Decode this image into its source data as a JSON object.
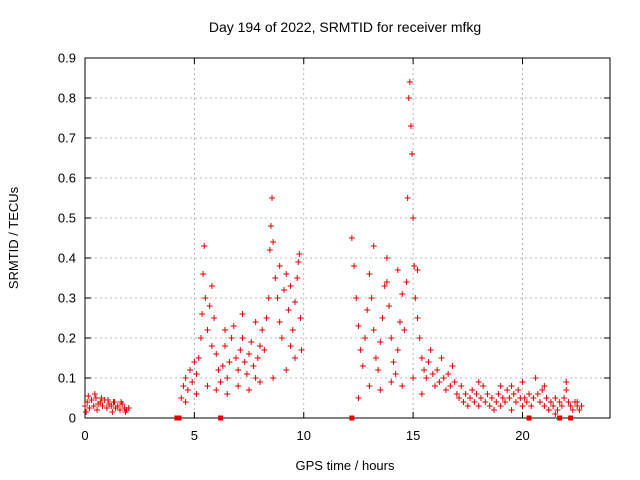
{
  "chart_data": {
    "type": "scatter",
    "title": "Day 194 of 2022, SRMTID for receiver mfkg",
    "xlabel": "GPS time / hours",
    "ylabel": "SRMTID / TECUs",
    "xlim": [
      0,
      24
    ],
    "ylim": [
      0,
      0.9
    ],
    "x_ticks": [
      0,
      5,
      10,
      15,
      20
    ],
    "y_ticks": [
      0,
      0.1,
      0.2,
      0.3,
      0.4,
      0.5,
      0.6,
      0.7,
      0.8,
      0.9
    ],
    "x_tick_labels": [
      "0",
      "5",
      "10",
      "15",
      "20"
    ],
    "y_tick_labels": [
      "0",
      "0.1",
      "0.2",
      "0.3",
      "0.4",
      "0.5",
      "0.6",
      "0.7",
      "0.8",
      "0.9"
    ],
    "grid": true,
    "marker": "+",
    "color": "#e00000",
    "series": [
      {
        "name": "SRMTID",
        "points": [
          [
            0.0,
            0.03
          ],
          [
            0.1,
            0.04
          ],
          [
            0.2,
            0.025
          ],
          [
            0.3,
            0.045
          ],
          [
            0.4,
            0.03
          ],
          [
            0.5,
            0.05
          ],
          [
            0.6,
            0.035
          ],
          [
            0.7,
            0.04
          ],
          [
            0.8,
            0.03
          ],
          [
            0.9,
            0.045
          ],
          [
            1.0,
            0.025
          ],
          [
            1.1,
            0.035
          ],
          [
            1.2,
            0.03
          ],
          [
            1.3,
            0.04
          ],
          [
            1.4,
            0.025
          ],
          [
            1.5,
            0.03
          ],
          [
            1.6,
            0.02
          ],
          [
            1.7,
            0.035
          ],
          [
            1.8,
            0.025
          ],
          [
            1.9,
            0.02
          ],
          [
            2.0,
            0.025
          ],
          [
            0.15,
            0.055
          ],
          [
            0.45,
            0.06
          ],
          [
            0.75,
            0.05
          ],
          [
            1.05,
            0.045
          ],
          [
            1.35,
            0.04
          ],
          [
            1.65,
            0.04
          ],
          [
            0.05,
            0.015
          ],
          [
            0.55,
            0.02
          ],
          [
            1.25,
            0.015
          ],
          [
            1.85,
            0.015
          ],
          [
            4.4,
            0.05
          ],
          [
            4.5,
            0.08
          ],
          [
            4.6,
            0.1
          ],
          [
            4.7,
            0.07
          ],
          [
            4.8,
            0.12
          ],
          [
            4.9,
            0.09
          ],
          [
            5.0,
            0.14
          ],
          [
            5.1,
            0.11
          ],
          [
            5.2,
            0.15
          ],
          [
            5.3,
            0.2
          ],
          [
            5.35,
            0.26
          ],
          [
            5.4,
            0.36
          ],
          [
            5.45,
            0.43
          ],
          [
            5.5,
            0.3
          ],
          [
            5.6,
            0.22
          ],
          [
            5.7,
            0.28
          ],
          [
            5.8,
            0.18
          ],
          [
            5.9,
            0.25
          ],
          [
            6.0,
            0.16
          ],
          [
            6.1,
            0.12
          ],
          [
            6.2,
            0.09
          ],
          [
            6.3,
            0.13
          ],
          [
            6.4,
            0.18
          ],
          [
            6.5,
            0.1
          ],
          [
            6.6,
            0.14
          ],
          [
            6.7,
            0.2
          ],
          [
            6.8,
            0.23
          ],
          [
            6.9,
            0.15
          ],
          [
            7.0,
            0.12
          ],
          [
            7.1,
            0.17
          ],
          [
            7.2,
            0.2
          ],
          [
            7.3,
            0.14
          ],
          [
            7.4,
            0.11
          ],
          [
            7.5,
            0.16
          ],
          [
            7.6,
            0.19
          ],
          [
            7.7,
            0.13
          ],
          [
            7.8,
            0.1
          ],
          [
            7.9,
            0.15
          ],
          [
            8.0,
            0.18
          ],
          [
            8.1,
            0.22
          ],
          [
            8.2,
            0.17
          ],
          [
            8.3,
            0.25
          ],
          [
            8.4,
            0.3
          ],
          [
            8.45,
            0.42
          ],
          [
            8.5,
            0.48
          ],
          [
            8.55,
            0.55
          ],
          [
            8.6,
            0.44
          ],
          [
            8.7,
            0.35
          ],
          [
            8.8,
            0.3
          ],
          [
            8.9,
            0.24
          ],
          [
            9.0,
            0.2
          ],
          [
            9.1,
            0.32
          ],
          [
            9.2,
            0.36
          ],
          [
            9.3,
            0.27
          ],
          [
            9.4,
            0.18
          ],
          [
            9.5,
            0.22
          ],
          [
            9.6,
            0.29
          ],
          [
            9.7,
            0.35
          ],
          [
            9.75,
            0.39
          ],
          [
            9.8,
            0.41
          ],
          [
            9.85,
            0.25
          ],
          [
            9.9,
            0.17
          ],
          [
            4.6,
            0.04
          ],
          [
            5.1,
            0.06
          ],
          [
            5.6,
            0.08
          ],
          [
            6.0,
            0.07
          ],
          [
            6.5,
            0.06
          ],
          [
            7.0,
            0.08
          ],
          [
            7.5,
            0.07
          ],
          [
            8.0,
            0.09
          ],
          [
            8.6,
            0.1
          ],
          [
            9.2,
            0.12
          ],
          [
            9.6,
            0.15
          ],
          [
            5.8,
            0.33
          ],
          [
            6.4,
            0.22
          ],
          [
            7.2,
            0.26
          ],
          [
            7.8,
            0.24
          ],
          [
            8.9,
            0.38
          ],
          [
            9.4,
            0.33
          ],
          [
            12.2,
            0.45
          ],
          [
            12.3,
            0.38
          ],
          [
            12.4,
            0.3
          ],
          [
            12.5,
            0.23
          ],
          [
            12.6,
            0.17
          ],
          [
            12.7,
            0.13
          ],
          [
            12.8,
            0.2
          ],
          [
            12.9,
            0.27
          ],
          [
            13.0,
            0.36
          ],
          [
            13.1,
            0.3
          ],
          [
            13.2,
            0.22
          ],
          [
            13.3,
            0.15
          ],
          [
            13.4,
            0.12
          ],
          [
            13.5,
            0.19
          ],
          [
            13.6,
            0.25
          ],
          [
            13.7,
            0.33
          ],
          [
            13.8,
            0.4
          ],
          [
            13.9,
            0.28
          ],
          [
            14.0,
            0.2
          ],
          [
            14.1,
            0.14
          ],
          [
            14.2,
            0.11
          ],
          [
            14.3,
            0.17
          ],
          [
            14.4,
            0.24
          ],
          [
            14.5,
            0.31
          ],
          [
            14.6,
            0.22
          ],
          [
            14.7,
            0.34
          ],
          [
            14.75,
            0.55
          ],
          [
            14.8,
            0.8
          ],
          [
            14.85,
            0.84
          ],
          [
            14.9,
            0.73
          ],
          [
            14.95,
            0.66
          ],
          [
            15.0,
            0.5
          ],
          [
            15.05,
            0.38
          ],
          [
            15.1,
            0.3
          ],
          [
            15.2,
            0.25
          ],
          [
            15.3,
            0.2
          ],
          [
            15.4,
            0.15
          ],
          [
            15.5,
            0.12
          ],
          [
            15.6,
            0.1
          ],
          [
            15.7,
            0.14
          ],
          [
            15.8,
            0.17
          ],
          [
            15.9,
            0.11
          ],
          [
            16.0,
            0.08
          ],
          [
            16.1,
            0.12
          ],
          [
            16.2,
            0.09
          ],
          [
            16.3,
            0.15
          ],
          [
            16.4,
            0.1
          ],
          [
            16.5,
            0.07
          ],
          [
            16.6,
            0.11
          ],
          [
            16.7,
            0.08
          ],
          [
            16.8,
            0.13
          ],
          [
            16.9,
            0.09
          ],
          [
            17.0,
            0.06
          ],
          [
            12.5,
            0.05
          ],
          [
            13.0,
            0.08
          ],
          [
            13.5,
            0.07
          ],
          [
            14.0,
            0.09
          ],
          [
            14.5,
            0.08
          ],
          [
            15.0,
            0.1
          ],
          [
            15.4,
            0.06
          ],
          [
            13.2,
            0.43
          ],
          [
            13.8,
            0.34
          ],
          [
            14.3,
            0.37
          ],
          [
            15.2,
            0.37
          ],
          [
            17.1,
            0.05
          ],
          [
            17.2,
            0.08
          ],
          [
            17.3,
            0.04
          ],
          [
            17.4,
            0.06
          ],
          [
            17.5,
            0.03
          ],
          [
            17.6,
            0.05
          ],
          [
            17.7,
            0.07
          ],
          [
            17.8,
            0.04
          ],
          [
            17.9,
            0.06
          ],
          [
            18.0,
            0.03
          ],
          [
            18.1,
            0.05
          ],
          [
            18.2,
            0.08
          ],
          [
            18.3,
            0.04
          ],
          [
            18.4,
            0.06
          ],
          [
            18.5,
            0.03
          ],
          [
            18.6,
            0.05
          ],
          [
            18.7,
            0.02
          ],
          [
            18.8,
            0.04
          ],
          [
            18.9,
            0.06
          ],
          [
            19.0,
            0.03
          ],
          [
            19.1,
            0.05
          ],
          [
            19.2,
            0.04
          ],
          [
            19.3,
            0.07
          ],
          [
            19.4,
            0.05
          ],
          [
            19.5,
            0.08
          ],
          [
            19.6,
            0.06
          ],
          [
            19.7,
            0.04
          ],
          [
            19.8,
            0.07
          ],
          [
            19.9,
            0.05
          ],
          [
            20.0,
            0.03
          ],
          [
            20.1,
            0.05
          ],
          [
            20.2,
            0.04
          ],
          [
            20.3,
            0.06
          ],
          [
            20.4,
            0.03
          ],
          [
            20.5,
            0.05
          ],
          [
            20.6,
            0.1
          ],
          [
            20.7,
            0.06
          ],
          [
            20.8,
            0.04
          ],
          [
            20.9,
            0.07
          ],
          [
            21.0,
            0.03
          ],
          [
            21.1,
            0.05
          ],
          [
            21.2,
            0.02
          ],
          [
            21.3,
            0.04
          ],
          [
            21.4,
            0.03
          ],
          [
            21.5,
            0.05
          ],
          [
            21.6,
            0.02
          ],
          [
            21.7,
            0.04
          ],
          [
            21.8,
            0.03
          ],
          [
            21.9,
            0.05
          ],
          [
            22.0,
            0.07
          ],
          [
            22.1,
            0.04
          ],
          [
            22.2,
            0.03
          ],
          [
            22.3,
            0.02
          ],
          [
            22.4,
            0.04
          ],
          [
            22.5,
            0.03
          ],
          [
            22.6,
            0.02
          ],
          [
            22.7,
            0.03
          ],
          [
            18.0,
            0.09
          ],
          [
            19.0,
            0.08
          ],
          [
            20.0,
            0.09
          ],
          [
            21.0,
            0.08
          ],
          [
            22.0,
            0.09
          ],
          [
            19.5,
            0.02
          ],
          [
            21.5,
            0.01
          ],
          [
            22.5,
            0.04
          ]
        ]
      }
    ],
    "axis_hits": [
      4.2,
      4.3,
      6.2,
      12.2,
      20.3,
      21.7,
      22.2
    ]
  }
}
